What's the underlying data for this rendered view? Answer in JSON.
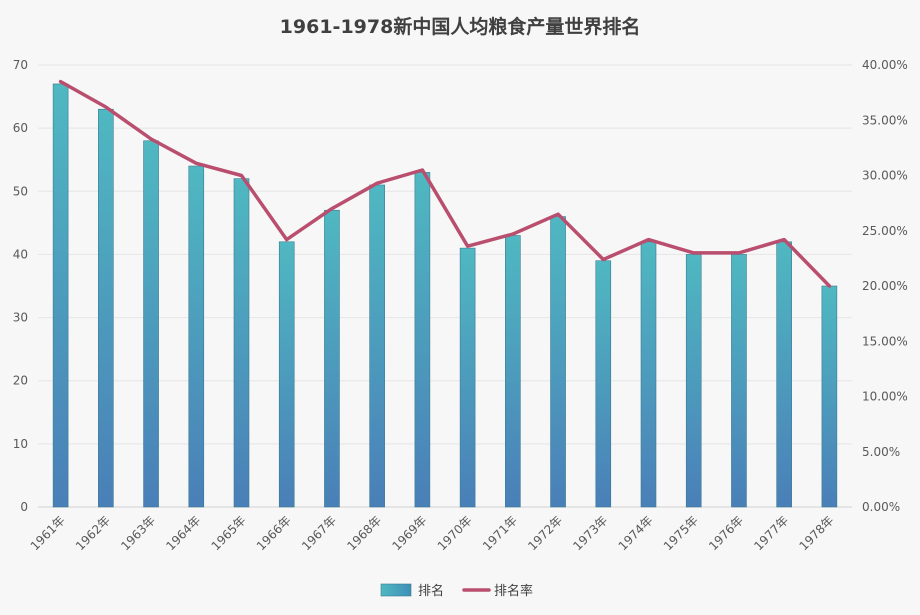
{
  "chart_data": {
    "type": "bar",
    "title": "1961-1978新中国人均粮食产量世界排名",
    "categories": [
      "1961年",
      "1962年",
      "1963年",
      "1964年",
      "1965年",
      "1966年",
      "1967年",
      "1968年",
      "1969年",
      "1970年",
      "1971年",
      "1972年",
      "1973年",
      "1974年",
      "1975年",
      "1976年",
      "1977年",
      "1978年"
    ],
    "series": [
      {
        "name": "排名",
        "type": "bar",
        "axis": "left",
        "color": "#3fa3b8",
        "values": [
          67,
          63,
          58,
          54,
          52,
          42,
          47,
          51,
          53,
          41,
          43,
          46,
          39,
          42,
          40,
          40,
          42,
          35
        ]
      },
      {
        "name": "排名率",
        "type": "line",
        "axis": "right",
        "color": "#b94e6e",
        "values": [
          0.385,
          0.362,
          0.333,
          0.311,
          0.3,
          0.242,
          0.27,
          0.293,
          0.305,
          0.236,
          0.247,
          0.265,
          0.224,
          0.242,
          0.23,
          0.23,
          0.242,
          0.2
        ]
      }
    ],
    "y_left": {
      "min": 0,
      "max": 70,
      "ticks": [
        "0",
        "10",
        "20",
        "30",
        "40",
        "50",
        "60",
        "70"
      ]
    },
    "y_right": {
      "min": 0,
      "max": 0.4,
      "ticks": [
        "0.00%",
        "5.00%",
        "10.00%",
        "15.00%",
        "20.00%",
        "25.00%",
        "30.00%",
        "35.00%",
        "40.00%"
      ]
    },
    "grid": true,
    "legend": "bottom"
  }
}
